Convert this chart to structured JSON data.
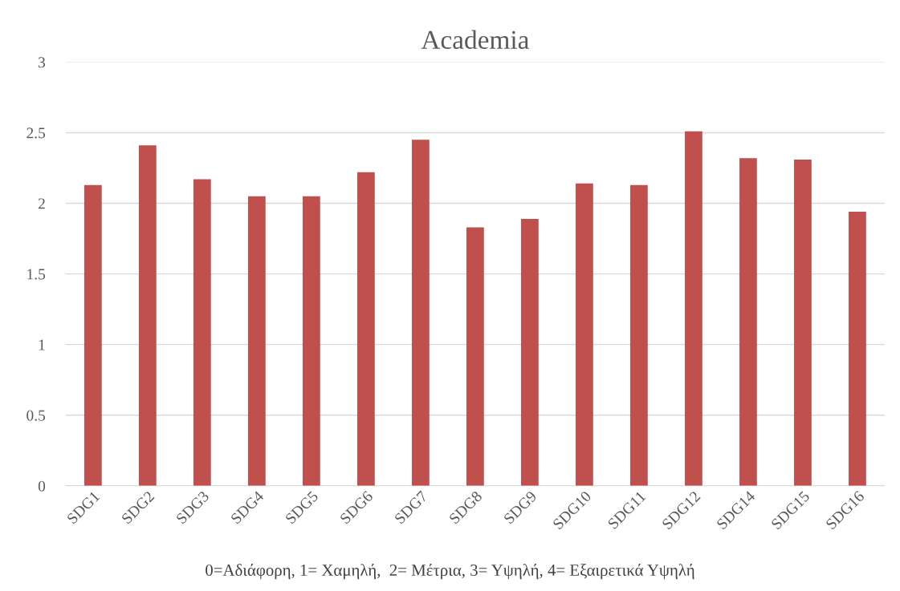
{
  "chart_data": {
    "type": "bar",
    "title": "Academia",
    "categories": [
      "SDG1",
      "SDG2",
      "SDG3",
      "SDG4",
      "SDG5",
      "SDG6",
      "SDG7",
      "SDG8",
      "SDG9",
      "SDG10",
      "SDG11",
      "SDG12",
      "SDG14",
      "SDG15",
      "SDG16"
    ],
    "values": [
      2.13,
      2.41,
      2.17,
      2.05,
      2.05,
      2.22,
      2.45,
      1.83,
      1.89,
      2.14,
      2.13,
      2.51,
      2.32,
      2.31,
      1.94
    ],
    "color": "#c0504d",
    "ylim": [
      0,
      3
    ],
    "yticks": [
      0,
      0.5,
      1,
      1.5,
      2,
      2.5,
      3
    ],
    "grid": "y",
    "annotations": [
      "0=Αδιάφορη, 1= Χαμηλή,  2= Μέτρια, 3= Υψηλή, 4= Εξαιρετικά Υψηλή"
    ]
  }
}
